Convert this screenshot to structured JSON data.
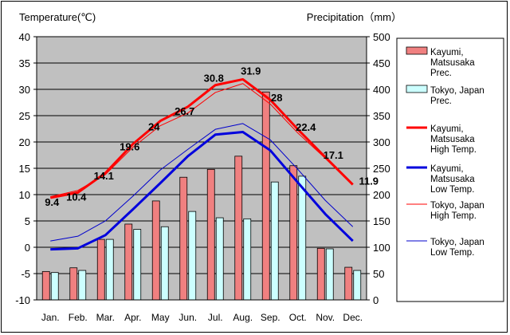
{
  "chart_data": {
    "type": "bar+line",
    "left_axis_title": "Temperature(℃)",
    "right_axis_title": "Precipitation（mm）",
    "categories": [
      "Jan.",
      "Feb.",
      "Mar.",
      "Apr.",
      "May",
      "Jun.",
      "Jul.",
      "Aug.",
      "Sep.",
      "Oct.",
      "Nov.",
      "Dec."
    ],
    "ylim_left": [
      -10,
      40
    ],
    "ylim_right": [
      0,
      500
    ],
    "left_ticks": [
      -10,
      -5,
      0,
      5,
      10,
      15,
      20,
      25,
      30,
      35,
      40
    ],
    "right_ticks": [
      0,
      50,
      100,
      150,
      200,
      250,
      300,
      350,
      400,
      450,
      500
    ],
    "grid": true,
    "legend_position": "right",
    "bar_series": [
      {
        "name": "Kayumi, Matsusaka Prec.",
        "legend_lines": [
          "Kayumi,",
          "Matsusaka",
          "Prec."
        ],
        "color": "#f08080",
        "values": [
          54,
          61,
          115,
          144,
          188,
          233,
          248,
          273,
          395,
          255,
          98,
          62
        ]
      },
      {
        "name": "Tokyo, Japan Prec.",
        "legend_lines": [
          "Tokyo, Japan",
          "Prec."
        ],
        "color": "#ccffff",
        "values": [
          52,
          56,
          115,
          134,
          139,
          168,
          156,
          154,
          224,
          235,
          97,
          56
        ]
      }
    ],
    "line_series": [
      {
        "name": "Kayumi, Matsusaka High Temp.",
        "legend_lines": [
          "Kayumi,",
          "Matsusaka",
          "High Temp."
        ],
        "color": "#ff0000",
        "width": "thick",
        "values": [
          9.4,
          10.4,
          14.1,
          19.6,
          24,
          26.7,
          30.8,
          31.9,
          28,
          22.4,
          17.1,
          11.9
        ],
        "labels": [
          "9.4",
          "10.4",
          "14.1",
          "19.6",
          "24",
          "26.7",
          "30.8",
          "31.9",
          "28",
          "22.4",
          "17.1",
          "11.9"
        ]
      },
      {
        "name": "Kayumi, Matsusaka Low Temp.",
        "legend_lines": [
          "Kayumi,",
          "Matsusaka",
          "Low Temp."
        ],
        "color": "#0000dd",
        "width": "thick",
        "values": [
          -0.4,
          -0.2,
          2.3,
          7.2,
          12.2,
          17.3,
          21.4,
          21.9,
          18.4,
          12.3,
          6.3,
          1.2
        ]
      },
      {
        "name": "Tokyo, Japan High Temp.",
        "legend_lines": [
          "Tokyo, Japan",
          "High Temp."
        ],
        "color": "#ff0000",
        "width": "thin",
        "values": [
          9.6,
          10.8,
          13.8,
          19.0,
          23.1,
          25.5,
          29.4,
          31.1,
          27.2,
          21.7,
          16.9,
          12.0
        ]
      },
      {
        "name": "Tokyo, Japan Low Temp.",
        "legend_lines": [
          "Tokyo, Japan",
          "Low Temp."
        ],
        "color": "#0000cc",
        "width": "thin",
        "values": [
          1.2,
          2.1,
          5.0,
          9.7,
          14.7,
          18.6,
          22.4,
          23.5,
          20.4,
          14.8,
          8.9,
          3.9
        ]
      }
    ]
  }
}
